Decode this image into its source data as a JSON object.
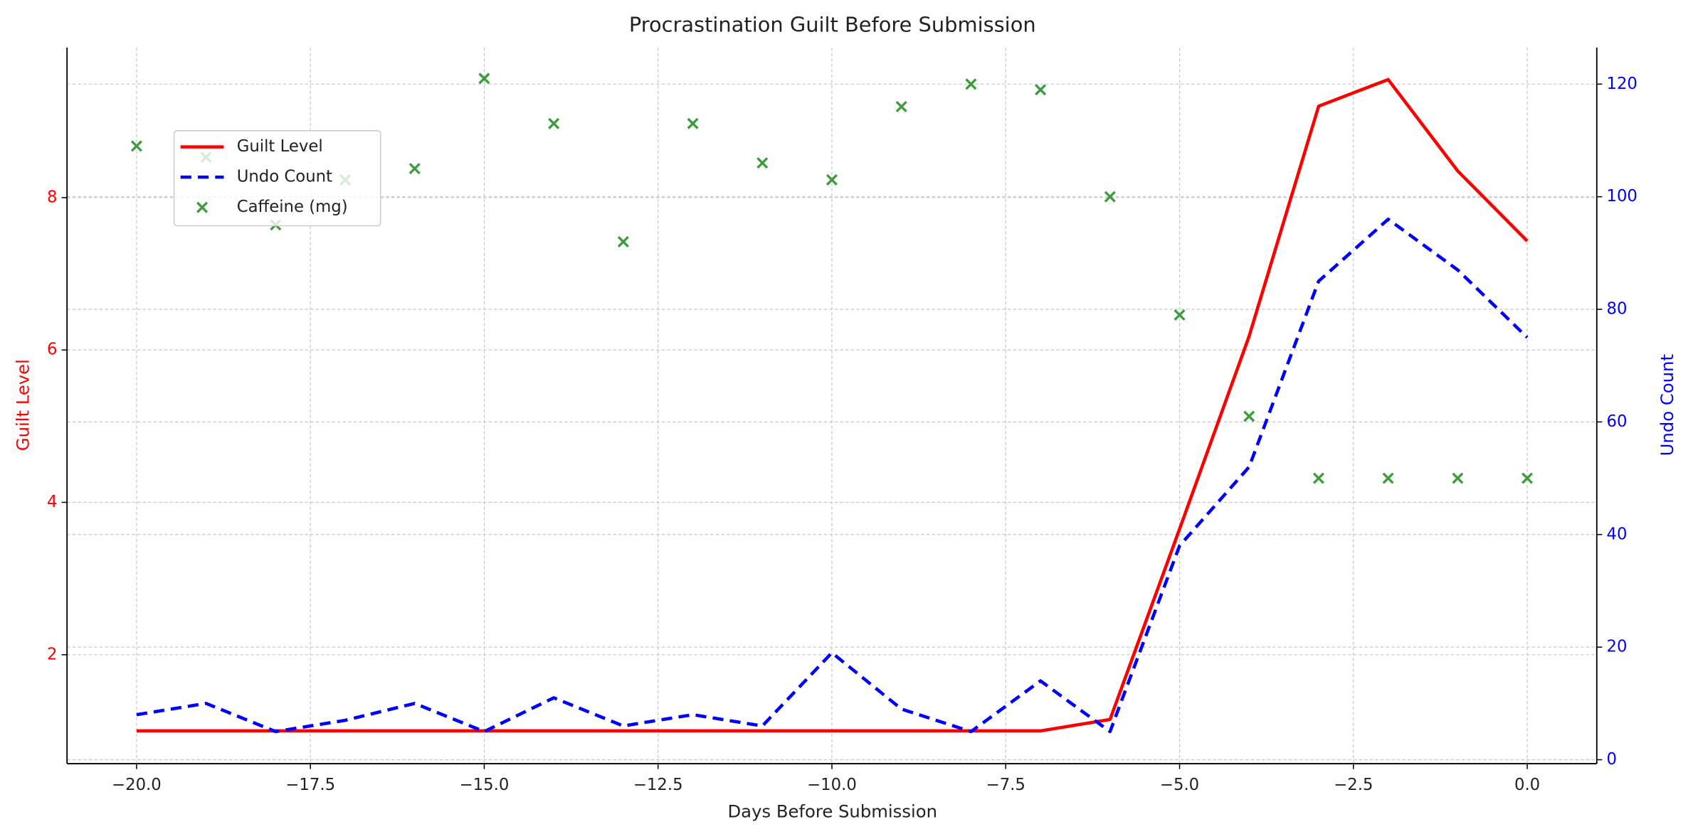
{
  "chart_data": {
    "type": "line",
    "title": "Procrastination Guilt Before Submission",
    "x_label": "Days Before Submission",
    "y_label": "Guilt Level",
    "y2_label": "Undo Count",
    "x": [
      -20,
      -19,
      -18,
      -17,
      -16,
      -15,
      -14,
      -13,
      -12,
      -11,
      -10,
      -9,
      -8,
      -7,
      -6,
      -5,
      -4,
      -3,
      -2,
      -1,
      0
    ],
    "series": [
      {
        "name": "Guilt Level",
        "type": "line",
        "color": "#ff0000",
        "dash": false,
        "axis": "y",
        "values": [
          1,
          1,
          1,
          1,
          1,
          1,
          1,
          1,
          1,
          1,
          1,
          1,
          1,
          1,
          1.15,
          3.65,
          6.18,
          9.2,
          9.55,
          8.35,
          7.43
        ]
      },
      {
        "name": "Undo Count",
        "type": "line",
        "color": "#0000ff",
        "dash": true,
        "axis": "y2",
        "values": [
          8,
          10,
          5,
          7,
          10,
          5,
          11,
          6,
          8,
          6,
          19,
          9,
          5,
          14,
          5,
          38,
          52,
          85,
          96,
          87,
          75
        ]
      },
      {
        "name": "Caffeine (mg)",
        "type": "scatter",
        "color": "#3c9c3c",
        "axis": "y2",
        "values": [
          109,
          107,
          95,
          103,
          105,
          121,
          113,
          92,
          113,
          106,
          103,
          116,
          120,
          119,
          100,
          79,
          61,
          50,
          50,
          50,
          50
        ]
      }
    ],
    "xlim": [
      -21,
      1
    ],
    "xticks": [
      {
        "value": -20,
        "label": "−20.0"
      },
      {
        "value": -17.5,
        "label": "−17.5"
      },
      {
        "value": -15,
        "label": "−15.0"
      },
      {
        "value": -12.5,
        "label": "−12.5"
      },
      {
        "value": -10,
        "label": "−10.0"
      },
      {
        "value": -7.5,
        "label": "−7.5"
      },
      {
        "value": -5,
        "label": "−5.0"
      },
      {
        "value": -2.5,
        "label": "−2.5"
      },
      {
        "value": 0,
        "label": "0.0"
      }
    ],
    "ylim": [
      0.57,
      9.97
    ],
    "yticks": [
      2,
      4,
      6,
      8
    ],
    "y2lim": [
      -0.7,
      126.5
    ],
    "y2ticks": [
      0,
      20,
      40,
      60,
      80,
      100,
      120
    ],
    "grid": true,
    "legend": "upper left"
  }
}
